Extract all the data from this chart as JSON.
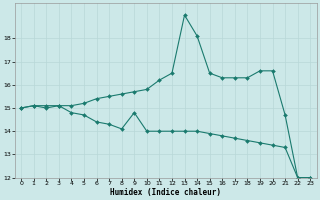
{
  "xlabel": "Humidex (Indice chaleur)",
  "bg_color": "#cce8e8",
  "line_color": "#1a7a6e",
  "x_upper": [
    0,
    1,
    2,
    3,
    4,
    5,
    6,
    7,
    8,
    9,
    10,
    11,
    12,
    13,
    14,
    15,
    16,
    17,
    18,
    19,
    20,
    21,
    22,
    23
  ],
  "y_upper": [
    15.0,
    15.1,
    15.1,
    15.1,
    15.1,
    15.2,
    15.4,
    15.5,
    15.6,
    15.7,
    15.8,
    16.2,
    16.5,
    19.0,
    18.1,
    16.5,
    16.3,
    16.3,
    16.3,
    16.6,
    16.6,
    14.7,
    12.0,
    12.0
  ],
  "x_lower": [
    0,
    1,
    2,
    3,
    4,
    5,
    6,
    7,
    8,
    9,
    10,
    11,
    12,
    13,
    14,
    15,
    16,
    17,
    18,
    19,
    20,
    21,
    22,
    23
  ],
  "y_lower": [
    15.0,
    15.1,
    15.0,
    15.1,
    14.8,
    14.7,
    14.4,
    14.3,
    14.1,
    14.8,
    14.0,
    14.0,
    14.0,
    14.0,
    14.0,
    13.9,
    13.8,
    13.7,
    13.6,
    13.5,
    13.4,
    13.3,
    12.0,
    12.0
  ],
  "ylim": [
    12,
    19.5
  ],
  "xlim": [
    -0.5,
    23.5
  ],
  "yticks": [
    12,
    13,
    14,
    15,
    16,
    17,
    18
  ],
  "xticks": [
    0,
    1,
    2,
    3,
    4,
    5,
    6,
    7,
    8,
    9,
    10,
    11,
    12,
    13,
    14,
    15,
    16,
    17,
    18,
    19,
    20,
    21,
    22,
    23
  ],
  "xlabel_fontsize": 5.5,
  "tick_fontsize": 4.5,
  "grid_color": "#b8d8d8",
  "spine_color": "#999999"
}
